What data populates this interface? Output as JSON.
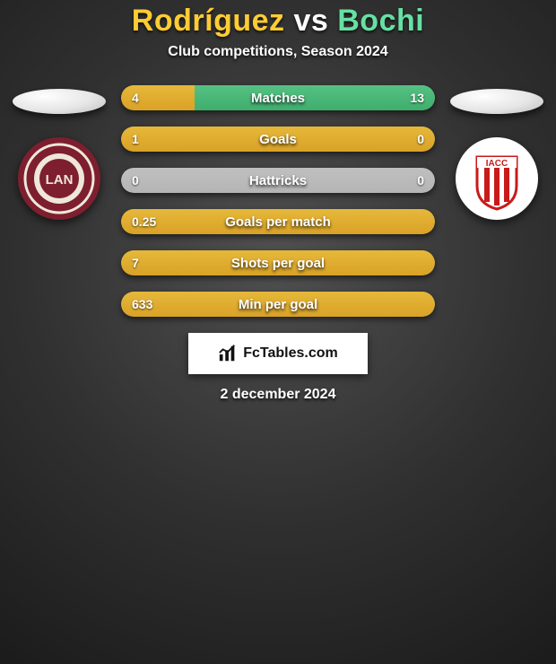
{
  "title": {
    "player1": "Rodríguez",
    "vs": "vs",
    "player2": "Bochi",
    "color1": "#ffcc33",
    "color_vs": "#ffffff",
    "color2": "#66e0a3",
    "fontsize": 34
  },
  "subtitle": {
    "text": "Club competitions, Season 2024",
    "color": "#ffffff",
    "fontsize": 16
  },
  "team_left": {
    "name": "Lanús",
    "badge_bg": "#7d1f2f",
    "badge_ring": "#efe7da",
    "badge_text": "LAN"
  },
  "team_right": {
    "name": "Instituto ACC",
    "badge_bg": "#ffffff",
    "badge_stripes": "#c91a1a",
    "badge_text": "IACC"
  },
  "bars": {
    "height": 28,
    "radius": 14,
    "gap": 18,
    "value_fontsize": 14,
    "stat_fontsize": 15,
    "track_color": "#8f8f8f",
    "fill_left_color": "#d9a227",
    "fill_right_color": "#3fae6d",
    "neutral_color": "#b5b5b5",
    "rows": [
      {
        "stat": "Matches",
        "left": "4",
        "right": "13",
        "left_pct": 23.5,
        "right_pct": 76.5
      },
      {
        "stat": "Goals",
        "left": "1",
        "right": "0",
        "left_pct": 100,
        "right_pct": 0
      },
      {
        "stat": "Hattricks",
        "left": "0",
        "right": "0",
        "left_pct": 0,
        "right_pct": 0
      },
      {
        "stat": "Goals per match",
        "left": "0.25",
        "right": "",
        "left_pct": 100,
        "right_pct": 0
      },
      {
        "stat": "Shots per goal",
        "left": "7",
        "right": "",
        "left_pct": 100,
        "right_pct": 0
      },
      {
        "stat": "Min per goal",
        "left": "633",
        "right": "",
        "left_pct": 100,
        "right_pct": 0
      }
    ]
  },
  "logo": {
    "text": "FcTables.com",
    "fontsize": 16
  },
  "date": {
    "text": "2 december 2024",
    "fontsize": 16
  }
}
